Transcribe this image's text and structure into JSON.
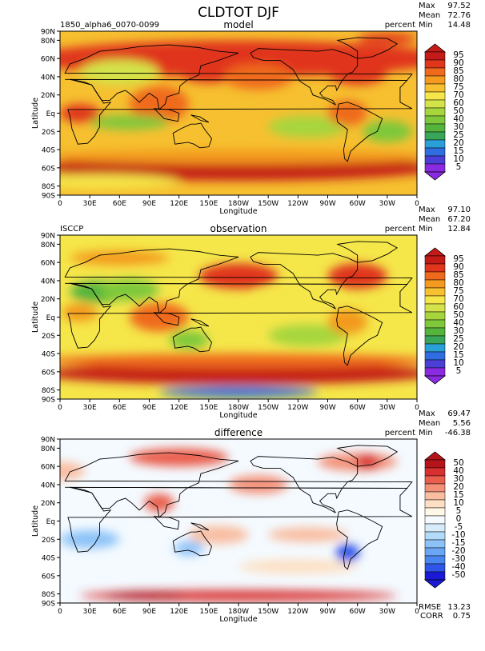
{
  "title": "CLDTOT DJF",
  "xlabel": "Longitude",
  "ylabel": "Latitude",
  "lat_ticks": [
    "90N",
    "80N",
    "60N",
    "40N",
    "20N",
    "Eq",
    "20S",
    "40S",
    "60S",
    "80S",
    "90S"
  ],
  "lon_ticks": [
    "0",
    "30E",
    "60E",
    "90E",
    "120E",
    "150E",
    "180W",
    "150W",
    "120W",
    "90W",
    "60W",
    "30W",
    "0"
  ],
  "panels": [
    {
      "left_label": "1850_alpha6_0070-0099",
      "center_label": "model",
      "units": "percent",
      "stats": {
        "max_label": "Max",
        "max": "97.52",
        "mean_label": "Mean",
        "mean": "72.76",
        "min_label": "Min",
        "min": "14.48"
      },
      "colorbar": [
        "5",
        "10",
        "15",
        "20",
        "25",
        "30",
        "40",
        "50",
        "60",
        "70",
        "75",
        "80",
        "85",
        "90",
        "95"
      ],
      "colors": [
        "#8a2be2",
        "#4a3fd6",
        "#2f6de0",
        "#2b9fd8",
        "#3aa65a",
        "#55b43c",
        "#7ec83a",
        "#a6d63c",
        "#d4e34a",
        "#f5e64a",
        "#f6c030",
        "#f39a1f",
        "#ef6a1c",
        "#e0361c",
        "#c41a18"
      ]
    },
    {
      "left_label": "ISCCP",
      "center_label": "observation",
      "units": "percent",
      "stats": {
        "max_label": "Max",
        "max": "97.10",
        "mean_label": "Mean",
        "mean": "67.20",
        "min_label": "Min",
        "min": "12.84"
      },
      "colorbar": [
        "5",
        "10",
        "15",
        "20",
        "25",
        "30",
        "40",
        "50",
        "60",
        "70",
        "75",
        "80",
        "85",
        "90",
        "95"
      ],
      "colors": [
        "#8a2be2",
        "#4a3fd6",
        "#2f6de0",
        "#2b9fd8",
        "#3aa65a",
        "#55b43c",
        "#7ec83a",
        "#a6d63c",
        "#d4e34a",
        "#f5e64a",
        "#f6c030",
        "#f39a1f",
        "#ef6a1c",
        "#e0361c",
        "#c41a18"
      ]
    },
    {
      "left_label": "",
      "center_label": "difference",
      "units": "percent",
      "stats": {
        "max_label": "Max",
        "max": "69.47",
        "mean_label": "Mean",
        "mean": "5.56",
        "min_label": "Min",
        "min": "-46.38"
      },
      "colorbar": [
        "-50",
        "-40",
        "-30",
        "-20",
        "-15",
        "-10",
        "-5",
        "0",
        "5",
        "10",
        "15",
        "20",
        "30",
        "40",
        "50"
      ],
      "colors": [
        "#1a1ad6",
        "#2f56e8",
        "#4a86f0",
        "#6aa6f5",
        "#8cc2f8",
        "#b2daf9",
        "#d6ecfb",
        "#f4faff",
        "#fff8e6",
        "#fde0c4",
        "#f9bda0",
        "#f39078",
        "#ea5e4e",
        "#d83030",
        "#b4141a"
      ],
      "footer": {
        "rmse_label": "RMSE",
        "rmse": "13.23",
        "corr_label": "CORR",
        "corr": "0.75"
      }
    }
  ],
  "chart_data": [
    {
      "type": "heatmap",
      "title": "model",
      "subtitle": "1850_alpha6_0070-0099",
      "xlabel": "Longitude",
      "ylabel": "Latitude",
      "units": "percent",
      "xlim": [
        0,
        360
      ],
      "ylim": [
        -90,
        90
      ],
      "stats": {
        "max": 97.52,
        "mean": 72.76,
        "min": 14.48
      },
      "levels": [
        5,
        10,
        15,
        20,
        25,
        30,
        40,
        50,
        60,
        70,
        75,
        80,
        85,
        90,
        95
      ]
    },
    {
      "type": "heatmap",
      "title": "observation",
      "subtitle": "ISCCP",
      "xlabel": "Longitude",
      "ylabel": "Latitude",
      "units": "percent",
      "xlim": [
        0,
        360
      ],
      "ylim": [
        -90,
        90
      ],
      "stats": {
        "max": 97.1,
        "mean": 67.2,
        "min": 12.84
      },
      "levels": [
        5,
        10,
        15,
        20,
        25,
        30,
        40,
        50,
        60,
        70,
        75,
        80,
        85,
        90,
        95
      ]
    },
    {
      "type": "heatmap",
      "title": "difference",
      "xlabel": "Longitude",
      "ylabel": "Latitude",
      "units": "percent",
      "xlim": [
        0,
        360
      ],
      "ylim": [
        -90,
        90
      ],
      "stats": {
        "max": 69.47,
        "mean": 5.56,
        "min": -46.38,
        "rmse": 13.23,
        "corr": 0.75
      },
      "levels": [
        -50,
        -40,
        -30,
        -20,
        -15,
        -10,
        -5,
        0,
        5,
        10,
        15,
        20,
        30,
        40,
        50
      ]
    }
  ]
}
